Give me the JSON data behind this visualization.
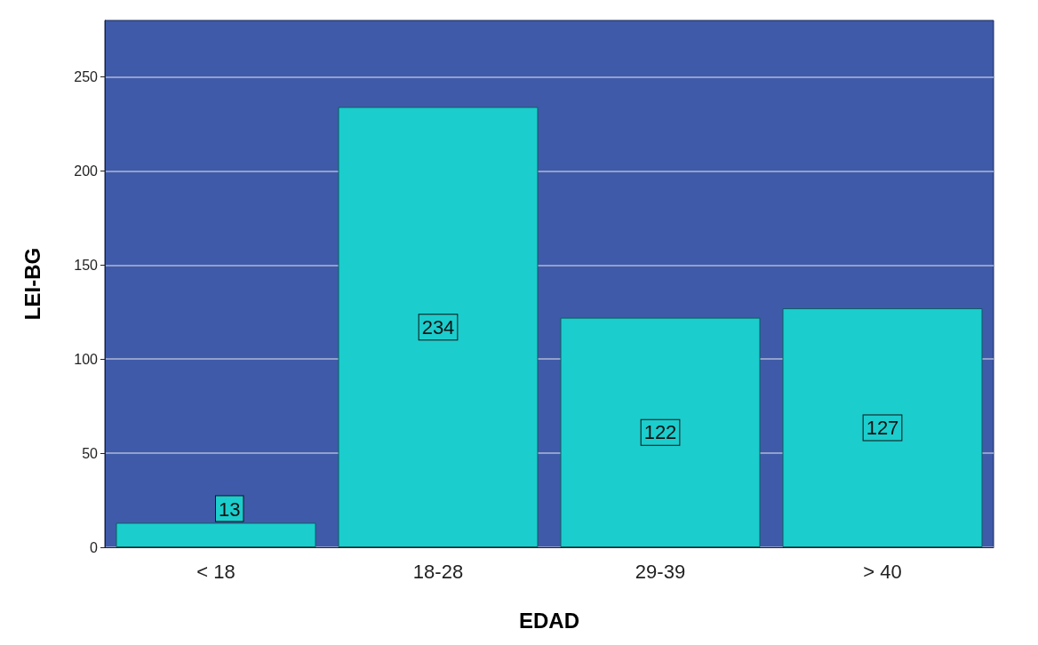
{
  "chart_data": {
    "type": "bar",
    "xlabel": "EDAD",
    "ylabel": "LEI-BG",
    "categories": [
      "< 18",
      "18-28",
      "29-39",
      "> 40"
    ],
    "values": [
      13,
      234,
      122,
      127
    ],
    "color": "#1ccdcd",
    "ylim": [
      0,
      280
    ],
    "yticks": [
      0,
      50,
      100,
      150,
      200,
      250
    ],
    "grid": "y",
    "data_labels": true
  }
}
